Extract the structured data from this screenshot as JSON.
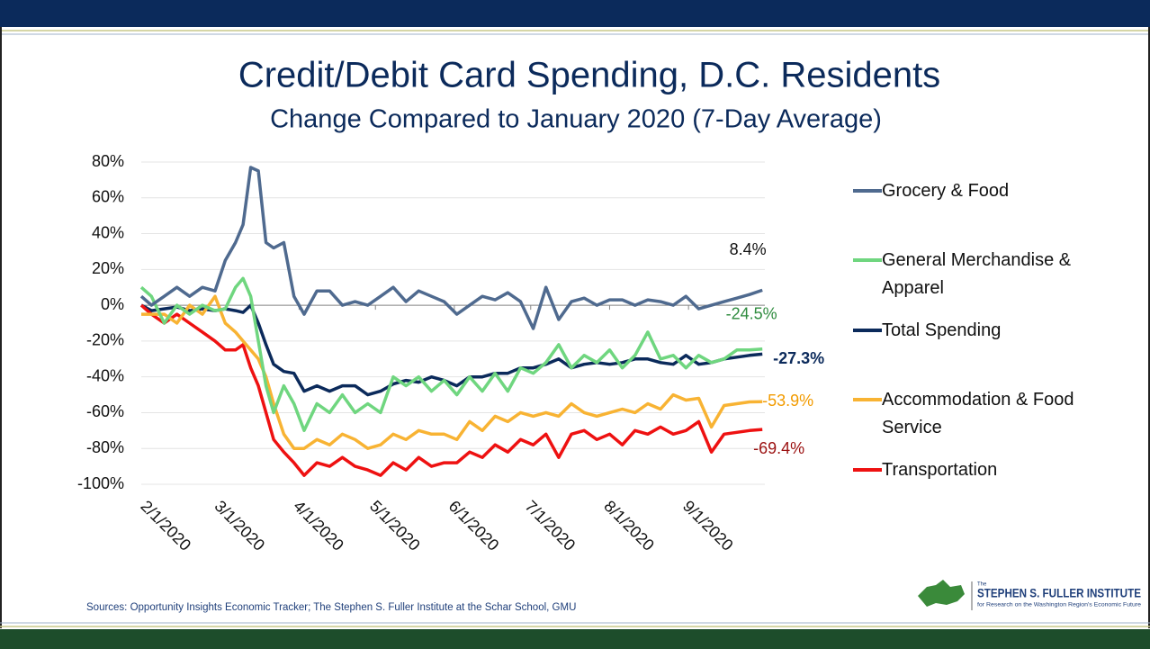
{
  "chart_data": {
    "type": "line",
    "title": "Credit/Debit Card Spending, D.C. Residents",
    "subtitle": "Change Compared to January 2020 (7-Day Average)",
    "x": [
      "2020-01-30",
      "2020-02-03",
      "2020-02-08",
      "2020-02-13",
      "2020-02-18",
      "2020-02-23",
      "2020-02-28",
      "2020-03-03",
      "2020-03-07",
      "2020-03-10",
      "2020-03-13",
      "2020-03-16",
      "2020-03-19",
      "2020-03-22",
      "2020-03-26",
      "2020-03-30",
      "2020-04-03",
      "2020-04-08",
      "2020-04-13",
      "2020-04-18",
      "2020-04-23",
      "2020-04-28",
      "2020-05-03",
      "2020-05-08",
      "2020-05-13",
      "2020-05-18",
      "2020-05-23",
      "2020-05-28",
      "2020-06-02",
      "2020-06-07",
      "2020-06-12",
      "2020-06-17",
      "2020-06-22",
      "2020-06-27",
      "2020-07-02",
      "2020-07-07",
      "2020-07-12",
      "2020-07-17",
      "2020-07-22",
      "2020-07-27",
      "2020-08-01",
      "2020-08-06",
      "2020-08-11",
      "2020-08-16",
      "2020-08-21",
      "2020-08-26",
      "2020-08-31",
      "2020-09-05",
      "2020-09-10",
      "2020-09-15",
      "2020-09-20",
      "2020-09-25",
      "2020-09-30"
    ],
    "series": [
      {
        "name": "Grocery & Food",
        "color": "#4f6a8f",
        "end_label": "8.4%",
        "values": [
          5,
          0,
          5,
          10,
          5,
          10,
          8,
          25,
          35,
          45,
          77,
          75,
          35,
          32,
          35,
          5,
          -5,
          8,
          8,
          0,
          2,
          0,
          5,
          10,
          2,
          8,
          5,
          2,
          -5,
          0,
          5,
          3,
          7,
          2,
          -13,
          10,
          -8,
          2,
          4,
          0,
          3,
          3,
          0,
          3,
          2,
          0,
          5,
          -2,
          0,
          2,
          4,
          6,
          8.4
        ]
      },
      {
        "name": "General Merchandise & Apparel",
        "color": "#6fd67f",
        "end_label": "-24.5%",
        "values": [
          10,
          5,
          -10,
          0,
          -5,
          0,
          -3,
          -2,
          10,
          15,
          5,
          -20,
          -45,
          -60,
          -45,
          -55,
          -70,
          -55,
          -60,
          -50,
          -60,
          -55,
          -60,
          -40,
          -45,
          -40,
          -48,
          -42,
          -50,
          -40,
          -48,
          -38,
          -48,
          -35,
          -38,
          -32,
          -22,
          -35,
          -28,
          -32,
          -25,
          -35,
          -28,
          -15,
          -30,
          -28,
          -35,
          -28,
          -32,
          -30,
          -25,
          -25,
          -24.5
        ]
      },
      {
        "name": "Total Spending",
        "color": "#0b2a5b",
        "end_label": "-27.3%",
        "values": [
          0,
          -3,
          -2,
          -1,
          -3,
          -2,
          -3,
          -2,
          -3,
          -4,
          0,
          -10,
          -22,
          -33,
          -37,
          -38,
          -48,
          -45,
          -48,
          -45,
          -45,
          -50,
          -48,
          -44,
          -42,
          -43,
          -40,
          -42,
          -45,
          -40,
          -40,
          -38,
          -38,
          -35,
          -35,
          -33,
          -30,
          -35,
          -33,
          -32,
          -33,
          -32,
          -30,
          -30,
          -32,
          -33,
          -28,
          -33,
          -32,
          -30,
          -29,
          -28,
          -27.3
        ]
      },
      {
        "name": "Accommodation & Food Service",
        "color": "#f8b333",
        "end_label": "-53.9%",
        "values": [
          -5,
          -5,
          -5,
          -10,
          0,
          -5,
          5,
          -10,
          -15,
          -20,
          -25,
          -30,
          -40,
          -55,
          -72,
          -80,
          -80,
          -75,
          -78,
          -72,
          -75,
          -80,
          -78,
          -72,
          -75,
          -70,
          -72,
          -72,
          -75,
          -65,
          -70,
          -62,
          -65,
          -60,
          -62,
          -60,
          -62,
          -55,
          -60,
          -62,
          -60,
          -58,
          -60,
          -55,
          -58,
          -50,
          -53,
          -52,
          -68,
          -56,
          -55,
          -54,
          -53.9
        ]
      },
      {
        "name": "Transportation",
        "color": "#ee1111",
        "end_label": "-69.4%",
        "values": [
          0,
          -5,
          -10,
          -5,
          -10,
          -15,
          -20,
          -25,
          -25,
          -22,
          -35,
          -45,
          -60,
          -75,
          -82,
          -88,
          -95,
          -88,
          -90,
          -85,
          -90,
          -92,
          -95,
          -88,
          -92,
          -85,
          -90,
          -88,
          -88,
          -82,
          -85,
          -78,
          -82,
          -75,
          -78,
          -72,
          -85,
          -72,
          -70,
          -75,
          -72,
          -78,
          -70,
          -72,
          -68,
          -72,
          -70,
          -65,
          -82,
          -72,
          -71,
          -70,
          -69.4
        ]
      }
    ],
    "xlim": [
      "2020-01-30",
      "2020-10-01"
    ],
    "xticks": [
      {
        "value": "2020-02-01",
        "label": "2/1/2020"
      },
      {
        "value": "2020-03-01",
        "label": "3/1/2020"
      },
      {
        "value": "2020-04-01",
        "label": "4/1/2020"
      },
      {
        "value": "2020-05-01",
        "label": "5/1/2020"
      },
      {
        "value": "2020-06-01",
        "label": "6/1/2020"
      },
      {
        "value": "2020-07-01",
        "label": "7/1/2020"
      },
      {
        "value": "2020-08-01",
        "label": "8/1/2020"
      },
      {
        "value": "2020-09-01",
        "label": "9/1/2020"
      }
    ],
    "ylim": [
      -100,
      80
    ],
    "yticks": [
      {
        "value": 80,
        "label": "80%"
      },
      {
        "value": 60,
        "label": "60%"
      },
      {
        "value": 40,
        "label": "40%"
      },
      {
        "value": 20,
        "label": "20%"
      },
      {
        "value": 0,
        "label": "0%"
      },
      {
        "value": -20,
        "label": "-20%"
      },
      {
        "value": -40,
        "label": "-40%"
      },
      {
        "value": -60,
        "label": "-60%"
      },
      {
        "value": -80,
        "label": "-80%"
      },
      {
        "value": -100,
        "label": "-100%"
      }
    ],
    "grid": true,
    "legend": "right"
  },
  "footer": {
    "source": "Sources: Opportunity Insights Economic Tracker; The Stephen S. Fuller Institute at the Schar School, GMU",
    "logo_the": "The",
    "logo_name": "STEPHEN S. FULLER INSTITUTE",
    "logo_tagline": "for Research on the Washington Region's Economic Future"
  }
}
